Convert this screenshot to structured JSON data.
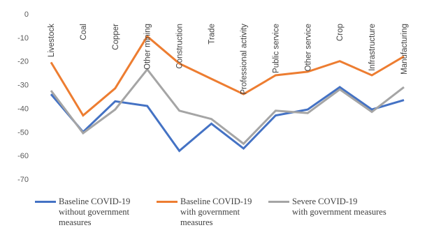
{
  "chart_data": {
    "type": "line",
    "title": "",
    "xlabel": "",
    "ylabel": "",
    "ylim": [
      -70,
      0
    ],
    "yticks": [
      0,
      -10,
      -20,
      -30,
      -40,
      -50,
      -60,
      -70
    ],
    "grid": false,
    "legend_position": "bottom",
    "categories": [
      "Livestock",
      "Coal",
      "Copper",
      "Other mining",
      "Construction",
      "Trade",
      "Professional activity",
      "Public service",
      "Other service",
      "Crop",
      "Infrastructure",
      "Manufacturing"
    ],
    "series": [
      {
        "name": "Baseline COVID-19 without government measures",
        "legend_lines": [
          "Baseline COVID-19",
          "without government",
          "measures"
        ],
        "color": "#4472C4",
        "values": [
          -34,
          -50,
          -37,
          -39,
          -58,
          -46.5,
          -57,
          -43,
          -40.5,
          -31,
          -40.5,
          -36.5
        ]
      },
      {
        "name": "Baseline COVID-19 with government measures",
        "legend_lines": [
          "Baseline COVID-19",
          "with government",
          "measures"
        ],
        "color": "#ED7D31",
        "values": [
          -20.5,
          -43,
          -31.5,
          -9.5,
          -21,
          -27.5,
          -34,
          -26,
          -24.5,
          -20,
          -26,
          -18
        ]
      },
      {
        "name": "Severe COVID-19 with government measures",
        "legend_lines": [
          "Severe COVID-19",
          "with government measures"
        ],
        "color": "#A5A5A5",
        "values": [
          -32.5,
          -50.5,
          -40.5,
          -23.5,
          -41,
          -44.5,
          -55,
          -41,
          -42,
          -32,
          -41.5,
          -31
        ]
      }
    ]
  }
}
